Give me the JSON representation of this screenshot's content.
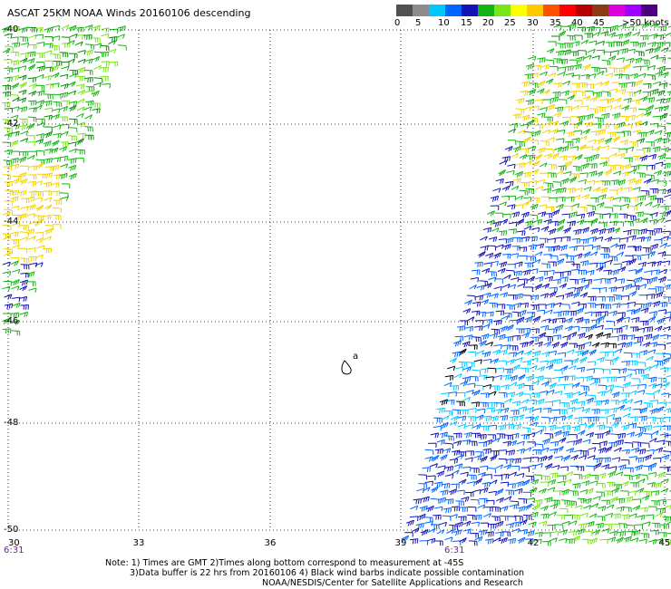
{
  "title": "ASCAT 25KM NOAA Winds 20160106 descending",
  "legend": {
    "labels": [
      "0",
      "5",
      "10",
      "15",
      "20",
      "25",
      "30",
      "35",
      "40",
      "45",
      ">50 knots"
    ],
    "colors": [
      "#505050",
      "#8c8c8c",
      "#00c8ff",
      "#0064ff",
      "#1414b4",
      "#14b414",
      "#78e614",
      "#ffff00",
      "#ffc800",
      "#ff5000",
      "#ff0000",
      "#b40000",
      "#8c3c14",
      "#dc00dc",
      "#a000ff",
      "#4b0082"
    ]
  },
  "axes": {
    "x_ticks": [
      "30",
      "33",
      "36",
      "39",
      "42",
      "45"
    ],
    "y_ticks": [
      "-40",
      "-42",
      "-44",
      "-46",
      "-48",
      "-50"
    ],
    "time_labels": [
      "6:31",
      "6:31"
    ]
  },
  "island_label": "a",
  "notes": [
    "Note: 1) Times are GMT 2)Times along bottom correspond to measurement at -45S",
    "3)Data buffer is 22 hrs from 20160106 4) Black wind barbs indicate possible contamination",
    "NOAA/NESDIS/Center for Satellite Applications and Research"
  ]
}
